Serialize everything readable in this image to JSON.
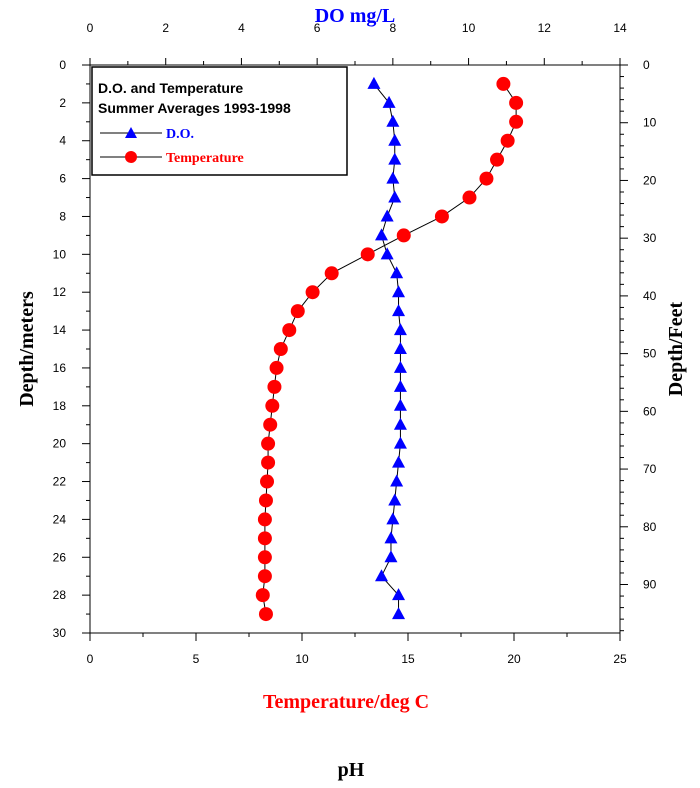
{
  "colors": {
    "do_series": "#0000ff",
    "temperature_series": "#ff0000",
    "axes": "#000000",
    "background": "#ffffff"
  },
  "chart_data": {
    "type": "scatter",
    "legend": {
      "title_line1": "D.O. and Temperature",
      "title_line2": "Summer Averages 1993-1998",
      "placement": "top-left",
      "entries": [
        "D.O.",
        "Temperature"
      ]
    },
    "axes": {
      "top": {
        "label": "DO mg/L",
        "range": [
          0,
          14
        ],
        "ticks": [
          "0",
          "2",
          "4",
          "6",
          "8",
          "10",
          "12",
          "14"
        ]
      },
      "bottom": {
        "label": "Temperature/deg C",
        "range": [
          0,
          25
        ],
        "ticks": [
          "0",
          "5",
          "10",
          "15",
          "20",
          "25"
        ]
      },
      "left": {
        "label": "Depth/meters",
        "range": [
          0,
          30
        ],
        "inverted": true,
        "ticks": [
          "0",
          "2",
          "4",
          "6",
          "8",
          "10",
          "12",
          "14",
          "16",
          "18",
          "20",
          "22",
          "24",
          "26",
          "28",
          "30"
        ]
      },
      "right": {
        "label": "Depth/Feet",
        "range": [
          0,
          98.4
        ],
        "inverted": true,
        "ticks": [
          "0",
          "10",
          "20",
          "30",
          "40",
          "50",
          "60",
          "70",
          "80",
          "90"
        ]
      }
    },
    "footer_label": "pH",
    "series": [
      {
        "name": "D.O.",
        "x_axis": "top",
        "marker": "triangle",
        "points": [
          [
            7.5,
            1
          ],
          [
            7.9,
            2
          ],
          [
            8.0,
            3
          ],
          [
            8.05,
            4
          ],
          [
            8.05,
            5
          ],
          [
            8.0,
            6
          ],
          [
            8.05,
            7
          ],
          [
            7.85,
            8
          ],
          [
            7.7,
            9
          ],
          [
            7.85,
            10
          ],
          [
            8.1,
            11
          ],
          [
            8.15,
            12
          ],
          [
            8.15,
            13
          ],
          [
            8.2,
            14
          ],
          [
            8.2,
            15
          ],
          [
            8.2,
            16
          ],
          [
            8.2,
            17
          ],
          [
            8.2,
            18
          ],
          [
            8.2,
            19
          ],
          [
            8.2,
            20
          ],
          [
            8.15,
            21
          ],
          [
            8.1,
            22
          ],
          [
            8.05,
            23
          ],
          [
            8.0,
            24
          ],
          [
            7.95,
            25
          ],
          [
            7.95,
            26
          ],
          [
            7.7,
            27
          ],
          [
            8.15,
            28
          ],
          [
            8.15,
            29
          ]
        ]
      },
      {
        "name": "Temperature",
        "x_axis": "bottom",
        "marker": "circle",
        "points": [
          [
            19.5,
            1
          ],
          [
            20.1,
            2
          ],
          [
            20.1,
            3
          ],
          [
            19.7,
            4
          ],
          [
            19.2,
            5
          ],
          [
            18.7,
            6
          ],
          [
            17.9,
            7
          ],
          [
            16.6,
            8
          ],
          [
            14.8,
            9
          ],
          [
            13.1,
            10
          ],
          [
            11.4,
            11
          ],
          [
            10.5,
            12
          ],
          [
            9.8,
            13
          ],
          [
            9.4,
            14
          ],
          [
            9.0,
            15
          ],
          [
            8.8,
            16
          ],
          [
            8.7,
            17
          ],
          [
            8.6,
            18
          ],
          [
            8.5,
            19
          ],
          [
            8.4,
            20
          ],
          [
            8.4,
            21
          ],
          [
            8.35,
            22
          ],
          [
            8.3,
            23
          ],
          [
            8.25,
            24
          ],
          [
            8.25,
            25
          ],
          [
            8.25,
            26
          ],
          [
            8.25,
            27
          ],
          [
            8.15,
            28
          ],
          [
            8.3,
            29
          ]
        ]
      }
    ]
  }
}
